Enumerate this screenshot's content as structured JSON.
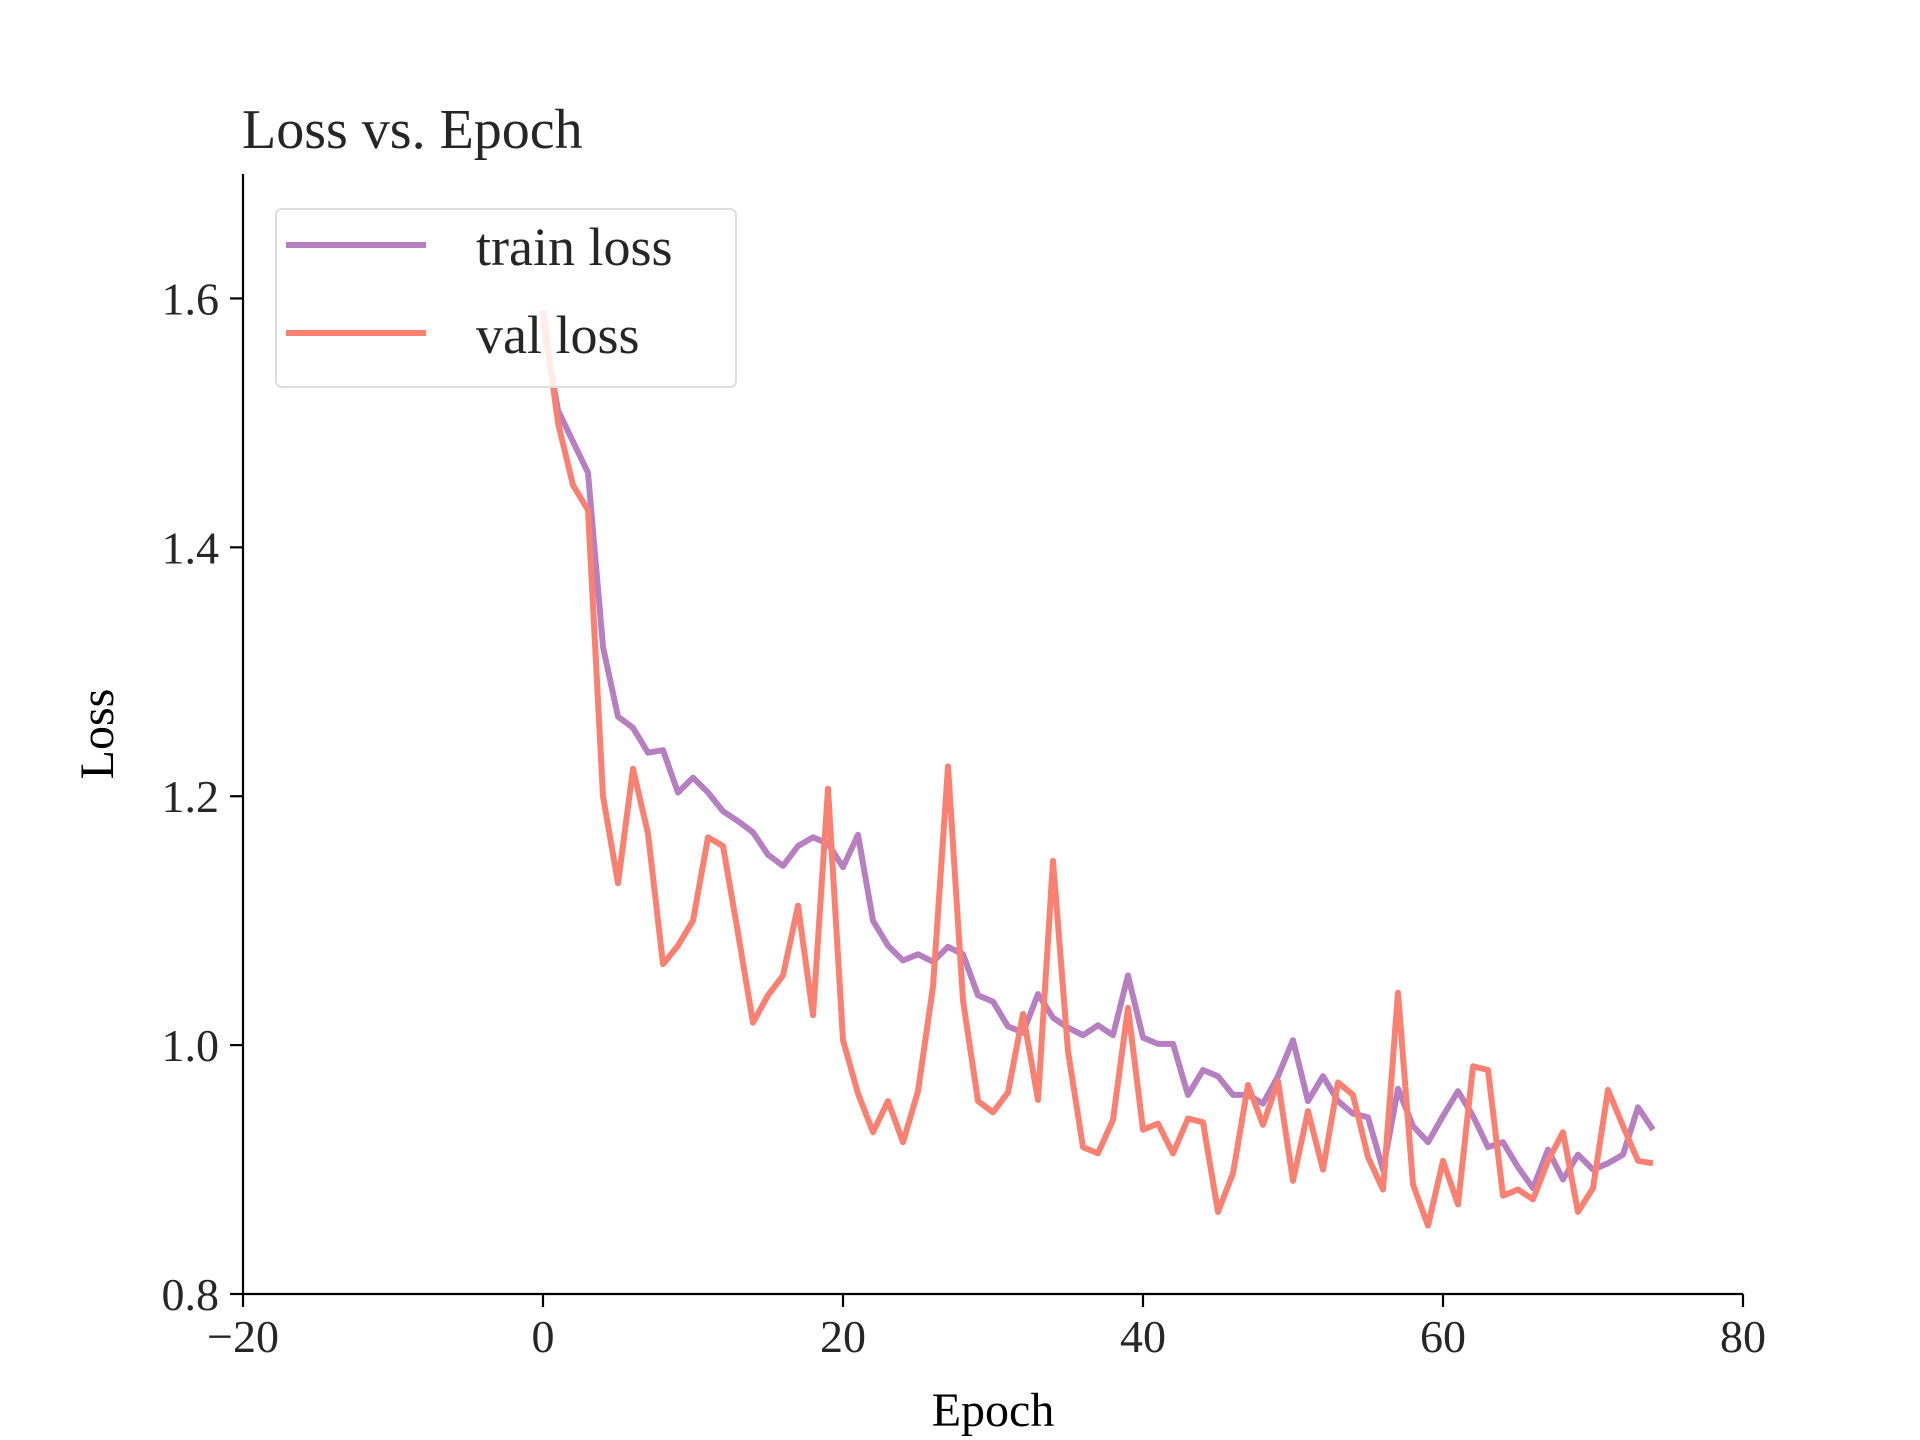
{
  "chart_data": {
    "type": "line",
    "title": "Loss vs. Epoch",
    "xlabel": "Epoch",
    "ylabel": "Loss",
    "xlim": [
      -20,
      80
    ],
    "ylim": [
      0.8,
      1.7
    ],
    "xticks": [
      -20,
      0,
      20,
      40,
      60,
      80
    ],
    "xtick_labels": [
      "−20",
      "0",
      "20",
      "40",
      "60",
      "80"
    ],
    "yticks": [
      0.8,
      1.0,
      1.2,
      1.4,
      1.6
    ],
    "ytick_labels": [
      "0.8",
      "1.0",
      "1.2",
      "1.4",
      "1.6"
    ],
    "grid": false,
    "legend": "top-left",
    "x": [
      0,
      1,
      2,
      3,
      4,
      5,
      6,
      7,
      8,
      9,
      10,
      11,
      12,
      13,
      14,
      15,
      16,
      17,
      18,
      19,
      20,
      21,
      22,
      23,
      24,
      25,
      26,
      27,
      28,
      29,
      30,
      31,
      32,
      33,
      34,
      35,
      36,
      37,
      38,
      39,
      40,
      41,
      42,
      43,
      44,
      45,
      46,
      47,
      48,
      49,
      50,
      51,
      52,
      53,
      54,
      55,
      56,
      57,
      58,
      59,
      60,
      61,
      62,
      63,
      64,
      65,
      66,
      67,
      68,
      69,
      70,
      71,
      72,
      73,
      74
    ],
    "series": [
      {
        "name": "train loss",
        "color": "#b57fc0",
        "values": [
          1.58,
          1.51,
          1.485,
          1.46,
          1.32,
          1.264,
          1.255,
          1.235,
          1.237,
          1.203,
          1.215,
          1.203,
          1.188,
          1.18,
          1.171,
          1.153,
          1.144,
          1.16,
          1.167,
          1.162,
          1.143,
          1.169,
          1.1,
          1.08,
          1.068,
          1.073,
          1.067,
          1.079,
          1.073,
          1.04,
          1.035,
          1.015,
          1.01,
          1.041,
          1.022,
          1.014,
          1.008,
          1.016,
          1.008,
          1.056,
          1.006,
          1.001,
          1.001,
          0.96,
          0.98,
          0.975,
          0.96,
          0.96,
          0.953,
          0.975,
          1.004,
          0.955,
          0.975,
          0.955,
          0.945,
          0.942,
          0.9,
          0.965,
          0.935,
          0.922,
          0.943,
          0.963,
          0.943,
          0.918,
          0.922,
          0.902,
          0.885,
          0.916,
          0.892,
          0.912,
          0.9,
          0.905,
          0.912,
          0.95,
          0.932
        ]
      },
      {
        "name": "val loss",
        "color": "#fa8072",
        "values": [
          1.59,
          1.5,
          1.45,
          1.43,
          1.2,
          1.13,
          1.222,
          1.17,
          1.065,
          1.08,
          1.1,
          1.167,
          1.16,
          1.09,
          1.018,
          1.04,
          1.056,
          1.112,
          1.024,
          1.206,
          1.004,
          0.961,
          0.93,
          0.955,
          0.922,
          0.963,
          1.047,
          1.224,
          1.036,
          0.955,
          0.946,
          0.962,
          1.025,
          0.956,
          1.148,
          0.995,
          0.918,
          0.913,
          0.94,
          1.03,
          0.932,
          0.937,
          0.913,
          0.941,
          0.938,
          0.866,
          0.897,
          0.968,
          0.936,
          0.971,
          0.891,
          0.947,
          0.9,
          0.97,
          0.96,
          0.91,
          0.884,
          1.042,
          0.888,
          0.855,
          0.907,
          0.872,
          0.983,
          0.98,
          0.879,
          0.884,
          0.876,
          0.907,
          0.93,
          0.866,
          0.885,
          0.964,
          0.935,
          0.907,
          0.905
        ]
      }
    ]
  }
}
